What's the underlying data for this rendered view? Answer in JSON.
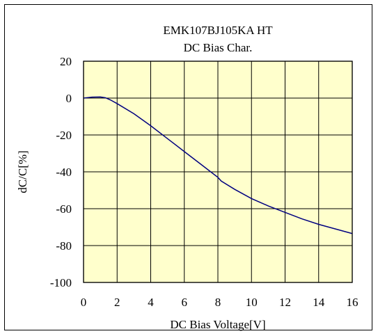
{
  "chart_data": {
    "type": "line",
    "title": "EMK107BJ105KA HT",
    "subtitle": "DC Bias Char.",
    "xlabel": "DC Bias Voltage[V]",
    "ylabel": "dC/C[%]",
    "xlim": [
      0,
      16
    ],
    "ylim": [
      -100,
      20
    ],
    "xticks": [
      "0",
      "2",
      "4",
      "6",
      "8",
      "10",
      "12",
      "14",
      "16"
    ],
    "yticks": [
      "20",
      "0",
      "-20",
      "-40",
      "-60",
      "-80",
      "-100"
    ],
    "grid": true,
    "plot_bg": "#ffffcc",
    "line_color": "#000080",
    "series": [
      {
        "x": [
          0,
          0.5,
          1,
          1.3,
          1.6,
          2,
          3,
          4,
          5,
          6,
          7,
          8,
          8.2,
          9,
          10,
          11,
          12,
          13,
          14,
          15,
          16
        ],
        "y": [
          0,
          0.5,
          0.6,
          0.2,
          -1,
          -3,
          -8.5,
          -15,
          -22,
          -29,
          -36,
          -43,
          -45,
          -49.5,
          -54.5,
          -58.5,
          -62,
          -65.5,
          -68.5,
          -71,
          -73.5
        ]
      }
    ]
  }
}
